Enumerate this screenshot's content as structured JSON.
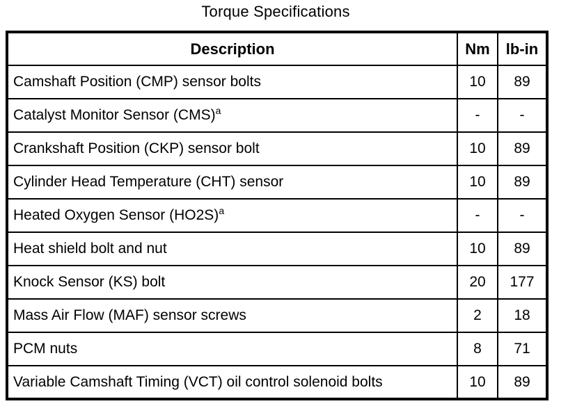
{
  "title": "Torque Specifications",
  "colors": {
    "background": "#ffffff",
    "border": "#000000",
    "text": "#000000"
  },
  "table": {
    "headers": [
      "Description",
      "Nm",
      "lb-in"
    ],
    "rows": [
      {
        "description": "Camshaft Position (CMP) sensor bolts",
        "note": "",
        "nm": "10",
        "lbin": "89"
      },
      {
        "description": "Catalyst Monitor Sensor (CMS)",
        "note": "a",
        "nm": "-",
        "lbin": "-"
      },
      {
        "description": "Crankshaft Position (CKP) sensor bolt",
        "note": "",
        "nm": "10",
        "lbin": "89"
      },
      {
        "description": "Cylinder Head Temperature (CHT) sensor",
        "note": "",
        "nm": "10",
        "lbin": "89"
      },
      {
        "description": "Heated Oxygen Sensor (HO2S)",
        "note": "a",
        "nm": "-",
        "lbin": "-"
      },
      {
        "description": "Heat shield bolt and nut",
        "note": "",
        "nm": "10",
        "lbin": "89"
      },
      {
        "description": "Knock Sensor (KS) bolt",
        "note": "",
        "nm": "20",
        "lbin": "177"
      },
      {
        "description": "Mass Air Flow (MAF) sensor screws",
        "note": "",
        "nm": "2",
        "lbin": "18"
      },
      {
        "description": "PCM nuts",
        "note": "",
        "nm": "8",
        "lbin": "71"
      },
      {
        "description": "Variable Camshaft Timing (VCT) oil control solenoid bolts",
        "note": "",
        "nm": "10",
        "lbin": "89"
      }
    ]
  }
}
